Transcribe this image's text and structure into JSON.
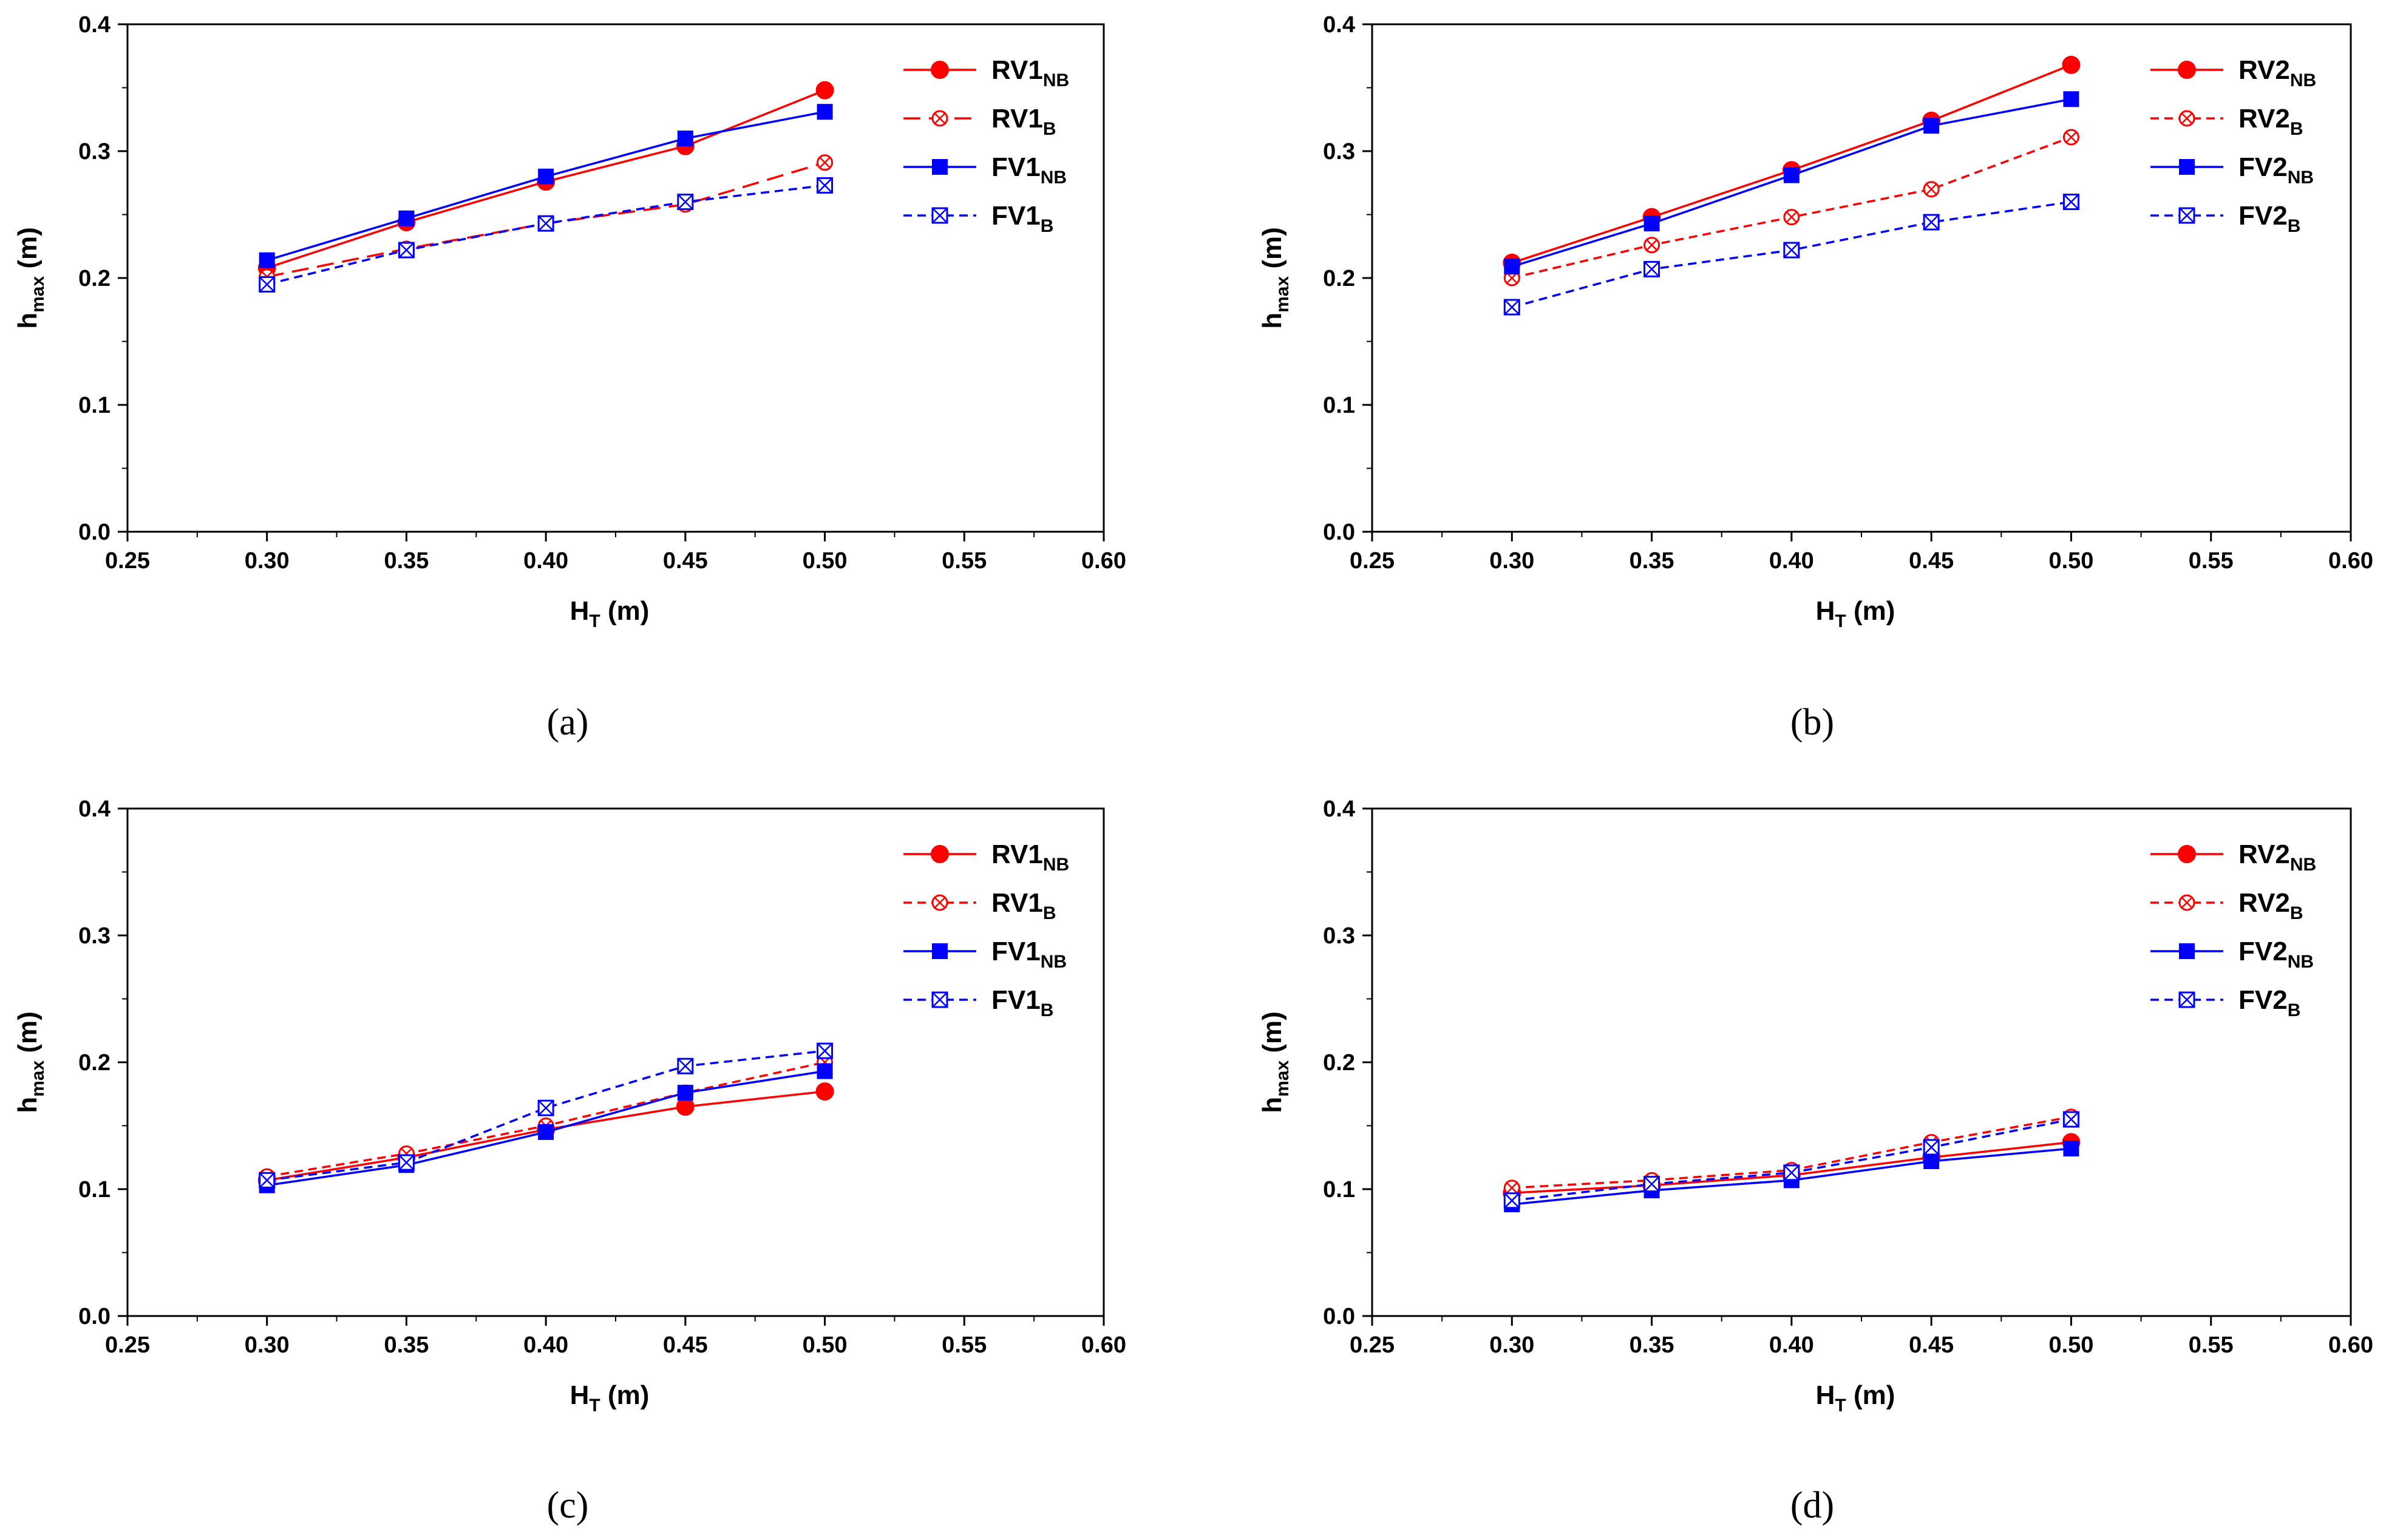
{
  "chart_data": [
    {
      "type": "line",
      "caption": "(a)",
      "xlabel": "H",
      "xlabel_sub": "T",
      "xlabel_unit": " (m)",
      "ylabel": "h",
      "ylabel_sub": "max",
      "ylabel_unit": " (m)",
      "xlim": [
        0.25,
        0.6
      ],
      "ylim": [
        0.0,
        0.4
      ],
      "xticks": [
        "0.25",
        "0.30",
        "0.35",
        "0.40",
        "0.45",
        "0.50",
        "0.55",
        "0.60"
      ],
      "yticks": [
        "0.0",
        "0.1",
        "0.2",
        "0.3",
        "0.4"
      ],
      "legend_position": "top-right",
      "x": [
        0.3,
        0.35,
        0.4,
        0.45,
        0.5
      ],
      "series": [
        {
          "name": "RV1",
          "sub": "NB",
          "color": "#ff0000",
          "dash": "solid",
          "marker": "circle",
          "values": [
            0.208,
            0.244,
            0.276,
            0.304,
            0.348
          ]
        },
        {
          "name": "RV1",
          "sub": "B",
          "color": "#ff0000",
          "dash": "long-dash",
          "marker": "crossed-circle",
          "values": [
            0.201,
            0.223,
            0.243,
            0.258,
            0.291
          ]
        },
        {
          "name": "FV1",
          "sub": "NB",
          "color": "#0000ff",
          "dash": "solid",
          "marker": "square",
          "values": [
            0.214,
            0.247,
            0.28,
            0.31,
            0.331
          ]
        },
        {
          "name": "FV1",
          "sub": "B",
          "color": "#0000ff",
          "dash": "short-dash",
          "marker": "crossed-square",
          "values": [
            0.195,
            0.222,
            0.243,
            0.26,
            0.273
          ]
        }
      ]
    },
    {
      "type": "line",
      "caption": "(b)",
      "xlabel": "H",
      "xlabel_sub": "T",
      "xlabel_unit": " (m)",
      "ylabel": "h",
      "ylabel_sub": "max",
      "ylabel_unit": " (m)",
      "xlim": [
        0.25,
        0.6
      ],
      "ylim": [
        0.0,
        0.4
      ],
      "xticks": [
        "0.25",
        "0.30",
        "0.35",
        "0.40",
        "0.45",
        "0.50",
        "0.55",
        "0.60"
      ],
      "yticks": [
        "0.0",
        "0.1",
        "0.2",
        "0.3",
        "0.4"
      ],
      "legend_position": "top-right",
      "x": [
        0.3,
        0.35,
        0.4,
        0.45,
        0.5
      ],
      "series": [
        {
          "name": "RV2",
          "sub": "NB",
          "color": "#ff0000",
          "dash": "solid",
          "marker": "circle",
          "values": [
            0.212,
            0.248,
            0.285,
            0.324,
            0.368
          ]
        },
        {
          "name": "RV2",
          "sub": "B",
          "color": "#ff0000",
          "dash": "short-dash",
          "marker": "crossed-circle",
          "values": [
            0.2,
            0.226,
            0.248,
            0.27,
            0.311
          ]
        },
        {
          "name": "FV2",
          "sub": "NB",
          "color": "#0000ff",
          "dash": "solid",
          "marker": "square",
          "values": [
            0.209,
            0.243,
            0.281,
            0.32,
            0.341
          ]
        },
        {
          "name": "FV2",
          "sub": "B",
          "color": "#0000ff",
          "dash": "short-dash",
          "marker": "crossed-square",
          "values": [
            0.177,
            0.207,
            0.222,
            0.244,
            0.26
          ]
        }
      ]
    },
    {
      "type": "line",
      "caption": "(c)",
      "xlabel": "H",
      "xlabel_sub": "T",
      "xlabel_unit": " (m)",
      "ylabel": "h",
      "ylabel_sub": "max",
      "ylabel_unit": " (m)",
      "xlim": [
        0.25,
        0.6
      ],
      "ylim": [
        0.0,
        0.4
      ],
      "xticks": [
        "0.25",
        "0.30",
        "0.35",
        "0.40",
        "0.45",
        "0.50",
        "0.55",
        "0.60"
      ],
      "yticks": [
        "0.0",
        "0.1",
        "0.2",
        "0.3",
        "0.4"
      ],
      "legend_position": "top-right",
      "x": [
        0.3,
        0.35,
        0.4,
        0.45,
        0.5
      ],
      "series": [
        {
          "name": "RV1",
          "sub": "NB",
          "color": "#ff0000",
          "dash": "solid",
          "marker": "circle",
          "values": [
            0.107,
            0.125,
            0.147,
            0.165,
            0.177
          ]
        },
        {
          "name": "RV1",
          "sub": "B",
          "color": "#ff0000",
          "dash": "short-dash",
          "marker": "crossed-circle",
          "values": [
            0.11,
            0.128,
            0.15,
            0.176,
            0.2
          ]
        },
        {
          "name": "FV1",
          "sub": "NB",
          "color": "#0000ff",
          "dash": "solid",
          "marker": "square",
          "values": [
            0.103,
            0.119,
            0.145,
            0.176,
            0.193
          ]
        },
        {
          "name": "FV1",
          "sub": "B",
          "color": "#0000ff",
          "dash": "short-dash",
          "marker": "crossed-square",
          "values": [
            0.107,
            0.121,
            0.164,
            0.197,
            0.209
          ]
        }
      ]
    },
    {
      "type": "line",
      "caption": "(d)",
      "xlabel": "H",
      "xlabel_sub": "T",
      "xlabel_unit": " (m)",
      "ylabel": "h",
      "ylabel_sub": "max",
      "ylabel_unit": " (m)",
      "xlim": [
        0.25,
        0.6
      ],
      "ylim": [
        0.0,
        0.4
      ],
      "xticks": [
        "0.25",
        "0.30",
        "0.35",
        "0.40",
        "0.45",
        "0.50",
        "0.55",
        "0.60"
      ],
      "yticks": [
        "0.0",
        "0.1",
        "0.2",
        "0.3",
        "0.4"
      ],
      "legend_position": "top-right",
      "x": [
        0.3,
        0.35,
        0.4,
        0.45,
        0.5
      ],
      "series": [
        {
          "name": "RV2",
          "sub": "NB",
          "color": "#ff0000",
          "dash": "solid",
          "marker": "circle",
          "values": [
            0.097,
            0.103,
            0.111,
            0.125,
            0.137
          ]
        },
        {
          "name": "RV2",
          "sub": "B",
          "color": "#ff0000",
          "dash": "short-dash",
          "marker": "crossed-circle",
          "values": [
            0.101,
            0.107,
            0.115,
            0.137,
            0.157
          ]
        },
        {
          "name": "FV2",
          "sub": "NB",
          "color": "#0000ff",
          "dash": "solid",
          "marker": "square",
          "values": [
            0.088,
            0.099,
            0.107,
            0.122,
            0.132
          ]
        },
        {
          "name": "FV2",
          "sub": "B",
          "color": "#0000ff",
          "dash": "short-dash",
          "marker": "crossed-square",
          "values": [
            0.091,
            0.104,
            0.113,
            0.133,
            0.155
          ]
        }
      ]
    }
  ]
}
